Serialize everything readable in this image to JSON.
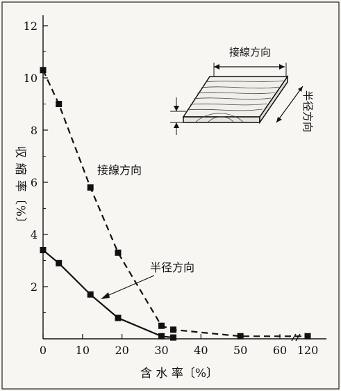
{
  "chart_data": {
    "type": "line",
    "xlabel": "含 水 率〔%〕",
    "ylabel": "収 縮 率〔%〕",
    "x_ticks": [
      "0",
      "10",
      "20",
      "30",
      "40",
      "50",
      "60",
      "120"
    ],
    "y_ticks": [
      "2",
      "4",
      "6",
      "8",
      "10",
      "12"
    ],
    "xlim": [
      0,
      120
    ],
    "ylim": [
      0,
      12
    ],
    "x_axis_break": [
      60,
      120
    ],
    "grid": false,
    "series": [
      {
        "name": "接線方向",
        "style": "dashed",
        "marker": "square",
        "x": [
          0,
          4,
          12,
          19,
          30,
          33,
          50,
          120
        ],
        "y": [
          10.3,
          9.0,
          5.8,
          3.3,
          0.5,
          0.35,
          0.1,
          0.1
        ]
      },
      {
        "name": "半径方向",
        "style": "solid",
        "marker": "square",
        "x": [
          0,
          4,
          12,
          19,
          30,
          33
        ],
        "y": [
          3.4,
          2.9,
          1.7,
          0.8,
          0.1,
          0.05
        ]
      }
    ],
    "annotations": [
      "接線方向",
      "半径方向"
    ],
    "inset": {
      "labels": [
        "接線方向",
        "半径方向"
      ]
    },
    "colors": {
      "ink": "#111111",
      "paper": "#f7f6f3"
    }
  }
}
